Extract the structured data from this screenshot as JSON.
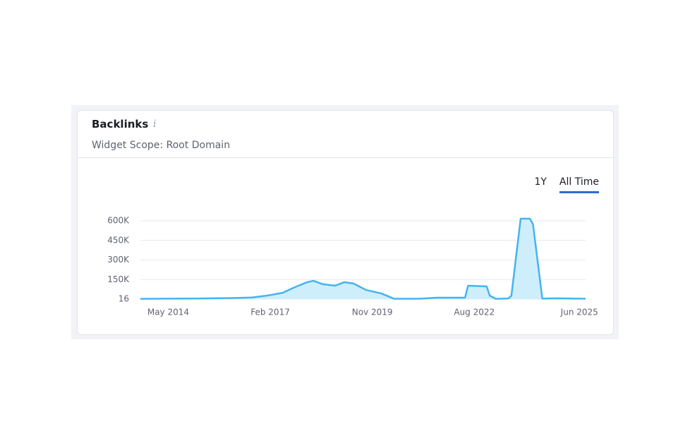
{
  "widget": {
    "title": "Backlinks",
    "info_label": "i",
    "subtitle": "Widget Scope: Root Domain",
    "periods": [
      "1Y",
      "All Time"
    ],
    "active_period": "All Time"
  },
  "chart_data": {
    "type": "area",
    "x": [
      "2013-08",
      "2015-03",
      "2016-02",
      "2016-08",
      "2017-01",
      "2017-06",
      "2017-10",
      "2018-02",
      "2018-04",
      "2018-07",
      "2018-11",
      "2019-02",
      "2019-05",
      "2019-09",
      "2020-02",
      "2020-06",
      "2021-02",
      "2021-08",
      "2022-05",
      "2022-06",
      "2022-12",
      "2023-01",
      "2023-03",
      "2023-07",
      "2023-08",
      "2023-11",
      "2024-02",
      "2024-03",
      "2024-06",
      "2024-11",
      "2025-08"
    ],
    "series": [
      {
        "name": "Backlinks",
        "color": "#45b3f3",
        "fill": "#cfeefc",
        "values": [
          2000,
          5000,
          8000,
          12000,
          27000,
          48000,
          92000,
          130000,
          140000,
          114000,
          103000,
          130000,
          119000,
          70000,
          43000,
          3000,
          3000,
          11000,
          11000,
          103000,
          97000,
          27000,
          2000,
          5000,
          25000,
          616000,
          616000,
          573000,
          4000,
          6000,
          3000
        ]
      }
    ],
    "xlim": [
      "2013-08",
      "2025-08"
    ],
    "xticks": [
      {
        "value": "2014-05",
        "label": "May 2014"
      },
      {
        "value": "2017-02",
        "label": "Feb 2017"
      },
      {
        "value": "2019-11",
        "label": "Nov 2019"
      },
      {
        "value": "2022-08",
        "label": "Aug 2022"
      },
      {
        "value": "2025-06",
        "label": "Jun 2025"
      }
    ],
    "ylim": [
      16,
      600000
    ],
    "yticks": [
      16,
      {
        "value": 150000,
        "label": "150K"
      },
      {
        "value": 300000,
        "label": "300K"
      },
      {
        "value": 450000,
        "label": "450K"
      },
      {
        "value": 600000,
        "label": "600K"
      }
    ],
    "grid": true
  }
}
